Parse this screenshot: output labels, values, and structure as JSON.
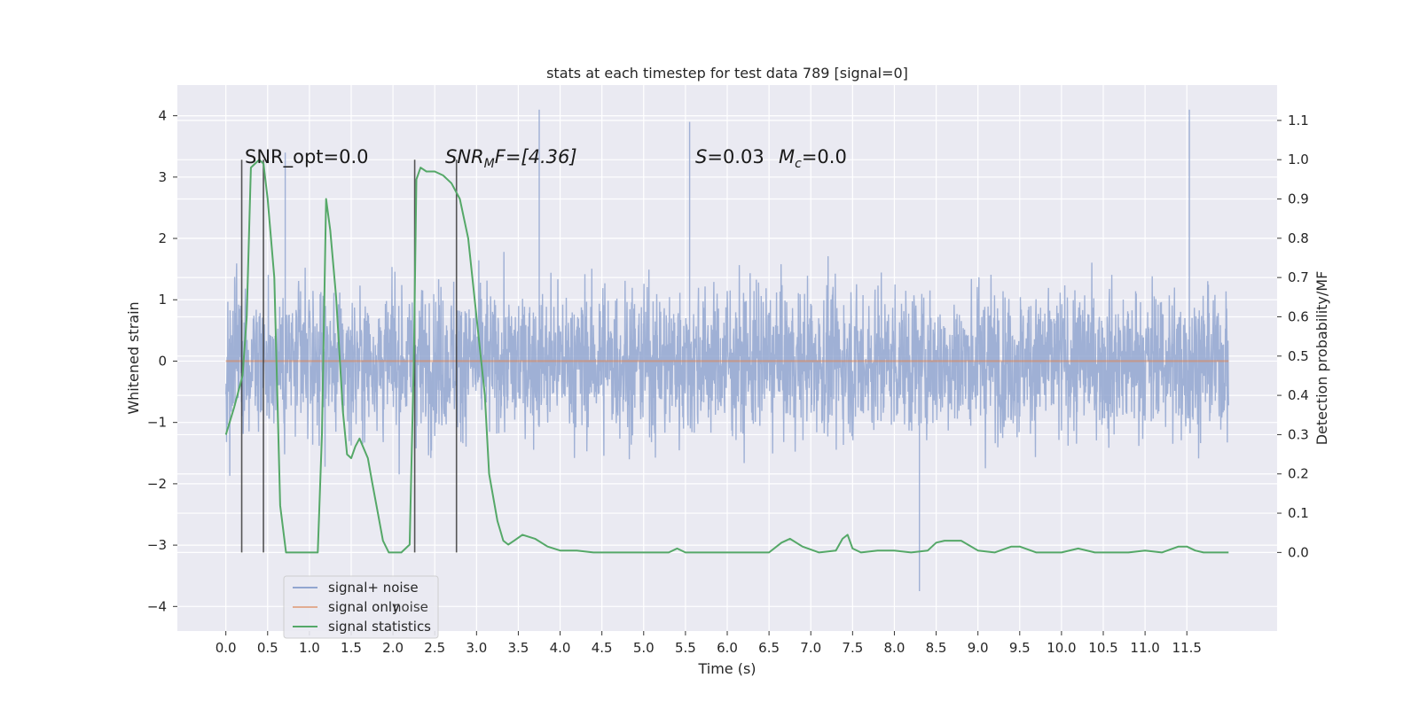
{
  "chart_data": {
    "type": "line",
    "title": "stats at each timestep for test data 789 [signal=0]",
    "xlabel": "Time (s)",
    "ylabel_left": "Whitened strain",
    "ylabel_right": "Detection probability/MF",
    "xlim": [
      -0.58,
      12.58
    ],
    "ylim_left": [
      -4.4,
      4.5
    ],
    "ylim_right": [
      -0.2,
      1.19
    ],
    "x_ticks": [
      "0.0",
      "0.5",
      "1.0",
      "1.5",
      "2.0",
      "2.5",
      "3.0",
      "3.5",
      "4.0",
      "4.5",
      "5.0",
      "5.5",
      "6.0",
      "6.5",
      "7.0",
      "7.5",
      "8.0",
      "8.5",
      "9.0",
      "9.5",
      "10.0",
      "10.5",
      "11.0",
      "11.5"
    ],
    "y_ticks_left": [
      "4",
      "3",
      "2",
      "1",
      "0",
      "−1",
      "−2",
      "−3",
      "−4"
    ],
    "y_ticks_right": [
      "1.1",
      "1.0",
      "0.9",
      "0.8",
      "0.7",
      "0.6",
      "0.5",
      "0.4",
      "0.3",
      "0.2",
      "0.1",
      "0.0"
    ],
    "grid": true,
    "legend_placement": "lower-left",
    "colors": {
      "background": "#eaeaf2",
      "grid": "#ffffff",
      "noise": "#92a6d0",
      "signal": "#dd8452",
      "stats": "#55a868",
      "markers": "#3a3a3a"
    },
    "series": [
      {
        "name": "signal+ noise",
        "axis": "left",
        "x_range": [
          0.0,
          12.0
        ],
        "sample_rate_hz": 256,
        "envelope": {
          "core_amplitude": 1.35,
          "peak_max": 4.1,
          "trough_min": -3.75
        },
        "notable_peaks": [
          {
            "x": 0.71,
            "y": 3.4
          },
          {
            "x": 3.75,
            "y": 4.1
          },
          {
            "x": 5.55,
            "y": 3.9
          },
          {
            "x": 11.53,
            "y": 4.1
          },
          {
            "x": 8.3,
            "y": -3.75
          }
        ]
      },
      {
        "name": "signal only",
        "axis": "left",
        "x": [
          0.0,
          12.0
        ],
        "y": [
          0.0,
          0.0
        ]
      },
      {
        "name": "signal statistics",
        "axis": "right",
        "x": [
          0.0,
          0.1,
          0.2,
          0.25,
          0.3,
          0.4,
          0.45,
          0.5,
          0.58,
          0.65,
          0.72,
          0.8,
          0.9,
          1.0,
          1.05,
          1.1,
          1.15,
          1.2,
          1.25,
          1.32,
          1.4,
          1.45,
          1.5,
          1.55,
          1.6,
          1.7,
          1.75,
          1.82,
          1.88,
          1.95,
          2.0,
          2.1,
          2.2,
          2.25,
          2.28,
          2.33,
          2.4,
          2.5,
          2.6,
          2.7,
          2.8,
          2.9,
          3.0,
          3.1,
          3.15,
          3.25,
          3.32,
          3.38,
          3.45,
          3.55,
          3.7,
          3.85,
          4.0,
          4.2,
          4.4,
          4.6,
          5.0,
          5.3,
          5.4,
          5.5,
          6.0,
          6.5,
          6.65,
          6.75,
          6.9,
          7.1,
          7.3,
          7.38,
          7.44,
          7.5,
          7.6,
          7.8,
          8.0,
          8.2,
          8.4,
          8.5,
          8.6,
          8.8,
          9.0,
          9.2,
          9.4,
          9.5,
          9.7,
          10.0,
          10.2,
          10.4,
          10.6,
          10.8,
          11.0,
          11.2,
          11.4,
          11.5,
          11.6,
          11.7,
          12.0
        ],
        "y": [
          0.3,
          0.37,
          0.45,
          0.6,
          0.98,
          1.0,
          0.99,
          0.9,
          0.7,
          0.12,
          0.0,
          0.0,
          0.0,
          0.0,
          0.0,
          0.0,
          0.3,
          0.9,
          0.82,
          0.65,
          0.36,
          0.25,
          0.24,
          0.27,
          0.29,
          0.24,
          0.18,
          0.1,
          0.03,
          0.0,
          0.0,
          0.0,
          0.02,
          0.5,
          0.95,
          0.98,
          0.97,
          0.97,
          0.96,
          0.94,
          0.9,
          0.8,
          0.6,
          0.4,
          0.2,
          0.08,
          0.03,
          0.02,
          0.03,
          0.045,
          0.035,
          0.015,
          0.005,
          0.005,
          0.0,
          0.0,
          0.0,
          0.0,
          0.01,
          0.0,
          0.0,
          0.0,
          0.025,
          0.035,
          0.015,
          0.0,
          0.005,
          0.035,
          0.045,
          0.01,
          0.0,
          0.005,
          0.005,
          0.0,
          0.005,
          0.025,
          0.03,
          0.03,
          0.005,
          0.0,
          0.015,
          0.015,
          0.0,
          0.0,
          0.01,
          0.0,
          0.0,
          0.0,
          0.005,
          0.0,
          0.015,
          0.015,
          0.005,
          0.0,
          0.0
        ]
      }
    ],
    "vertical_markers": [
      0.19,
      0.45,
      2.26,
      2.76
    ],
    "annotations": [
      {
        "id": "snr-opt",
        "text": "SNR_opt=0.0"
      },
      {
        "id": "snr-mf-base",
        "text": "SNR",
        "sub": "M",
        "rest": "F=[4.36]"
      },
      {
        "id": "s-stat",
        "italic": "S",
        "text": "=0.03"
      },
      {
        "id": "mc-stat",
        "italic": "M",
        "sub": "c",
        "text": "=0.0"
      }
    ],
    "legend": [
      {
        "label": "signal+ noise",
        "color": "#92a6d0"
      },
      {
        "label": "signal only",
        "color": "#dd8452",
        "overlay": "noise"
      },
      {
        "label": "signal statistics",
        "color": "#55a868"
      }
    ]
  }
}
